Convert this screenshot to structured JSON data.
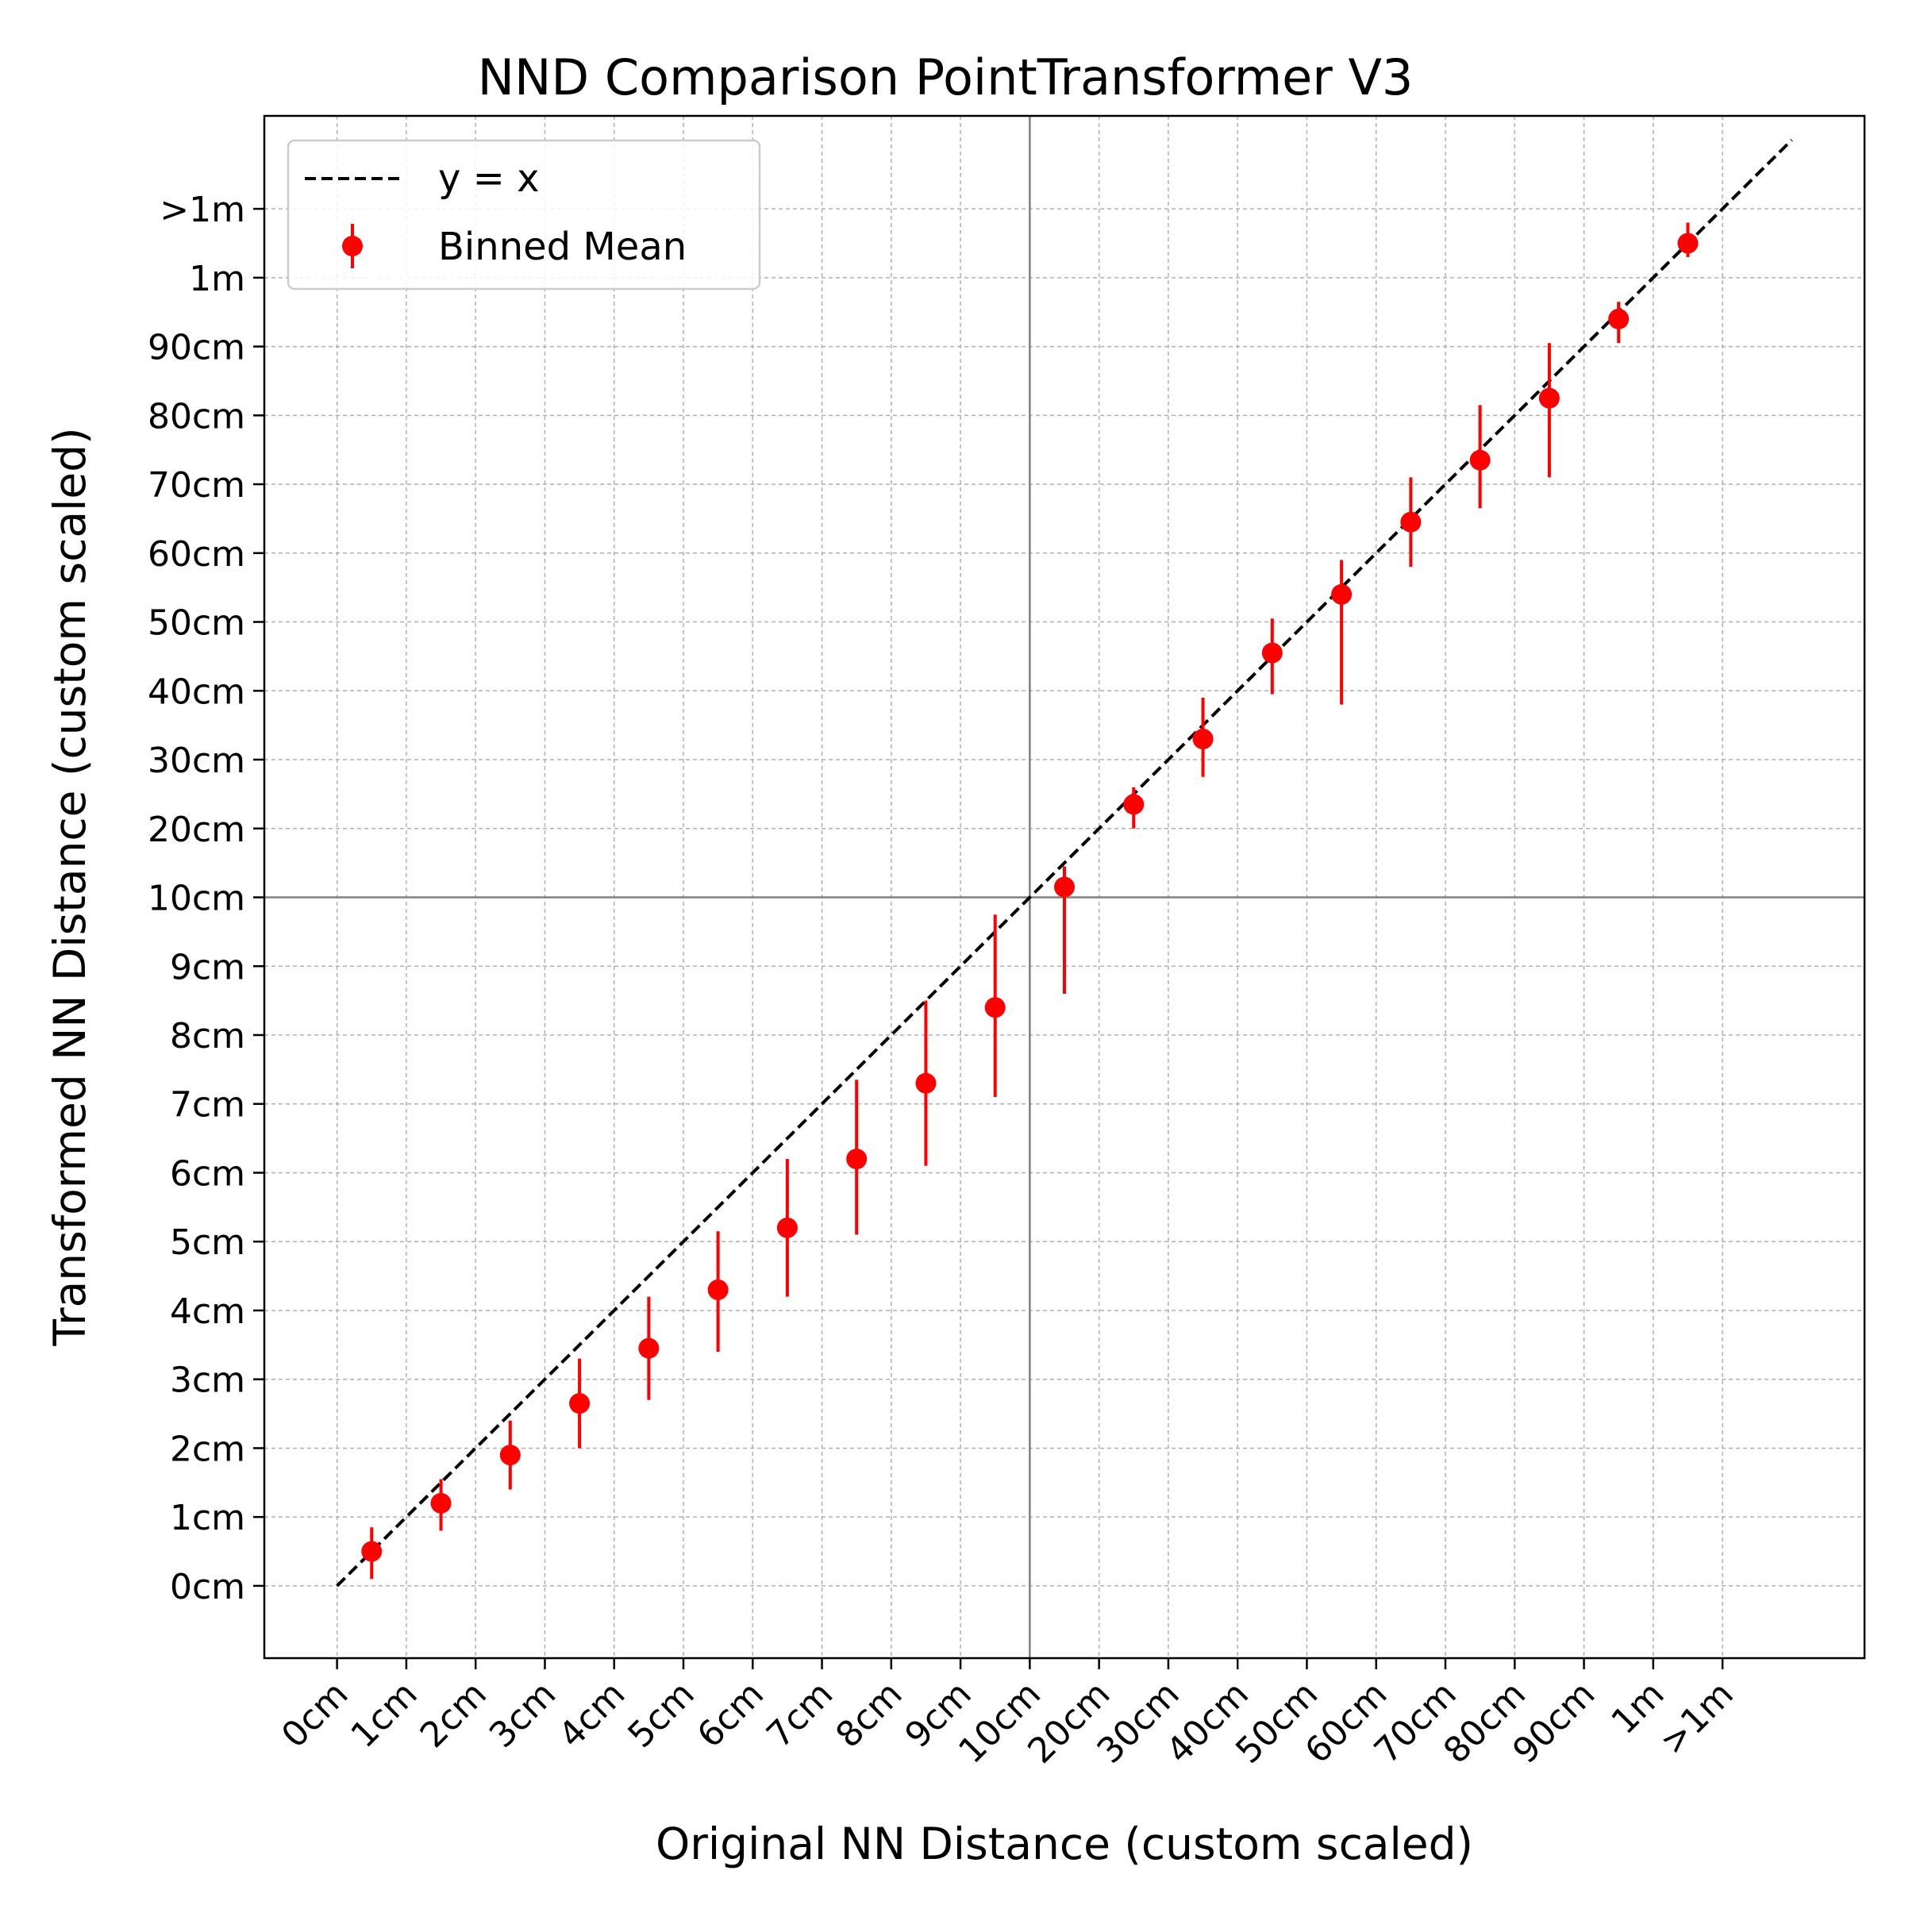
{
  "chart_data": {
    "type": "scatter",
    "title": "NND Comparison PointTransformer V3",
    "xlabel": "Original NN Distance (custom scaled)",
    "ylabel": "Transformed NN Distance (custom scaled)",
    "scale": "custom piecewise: 0-10cm linear, 10cm-1m compressed, >1m overflow bin",
    "tick_labels": [
      "0cm",
      "1cm",
      "2cm",
      "3cm",
      "4cm",
      "5cm",
      "6cm",
      "7cm",
      "8cm",
      "9cm",
      "10cm",
      "20cm",
      "30cm",
      "40cm",
      "50cm",
      "60cm",
      "70cm",
      "80cm",
      "90cm",
      "1m",
      ">1m"
    ],
    "xlim": [
      -1.05,
      22.05
    ],
    "ylim": [
      -1.05,
      21.35
    ],
    "grid": true,
    "reference_lines": [
      "10cm"
    ],
    "legend": {
      "position": "top-left",
      "entries": [
        "y = x",
        "Binned Mean"
      ]
    },
    "series": [
      {
        "name": "y = x",
        "kind": "line",
        "style": "dashed",
        "color": "#000000",
        "x": [
          0,
          21
        ],
        "y": [
          0,
          21
        ]
      },
      {
        "name": "Binned Mean",
        "kind": "errorbar",
        "color": "#ff0000",
        "x": [
          0.5,
          1.5,
          2.5,
          3.5,
          4.5,
          5.5,
          6.5,
          7.5,
          8.5,
          9.5,
          10.5,
          11.5,
          12.5,
          13.5,
          14.5,
          15.5,
          16.5,
          17.5,
          18.5,
          19.5
        ],
        "y": [
          0.5,
          1.2,
          1.9,
          2.65,
          3.45,
          4.3,
          5.2,
          6.2,
          7.3,
          8.4,
          10.15,
          11.35,
          12.3,
          13.55,
          14.4,
          15.45,
          16.35,
          17.25,
          18.4,
          19.5
        ],
        "yerr_low": [
          0.1,
          0.8,
          1.4,
          2.0,
          2.7,
          3.4,
          4.2,
          5.1,
          6.1,
          7.1,
          8.6,
          11.0,
          11.75,
          12.95,
          12.8,
          14.8,
          15.65,
          16.1,
          18.05,
          19.3
        ],
        "yerr_high": [
          0.85,
          1.55,
          2.4,
          3.3,
          4.2,
          5.15,
          6.2,
          7.35,
          8.5,
          9.75,
          10.45,
          11.6,
          12.9,
          14.05,
          14.9,
          16.1,
          17.15,
          18.05,
          18.65,
          19.8
        ]
      }
    ]
  }
}
